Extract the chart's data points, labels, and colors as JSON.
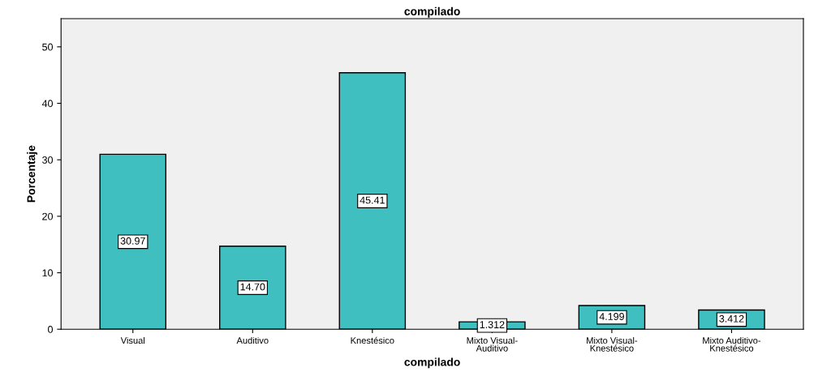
{
  "chart_data": {
    "type": "bar",
    "title": "compilado",
    "xlabel": "compilado",
    "ylabel": "Porcentaje",
    "categories": [
      "Visual",
      "Auditivo",
      "Knestésico",
      "Mixto Visual-\nAuditivo",
      "Mixto Visual-\nKnestésico",
      "Mixto Auditivo-\nKnestésico"
    ],
    "values": [
      30.97,
      14.7,
      45.41,
      1.312,
      4.199,
      3.412
    ],
    "value_labels": [
      "30.97",
      "14.70",
      "45.41",
      "1.312",
      "4.199",
      "3.412"
    ],
    "color": "#3fbfbf",
    "ylim": [
      0,
      55
    ],
    "yticks": [
      0,
      10,
      20,
      30,
      40,
      50
    ],
    "grid": false
  }
}
